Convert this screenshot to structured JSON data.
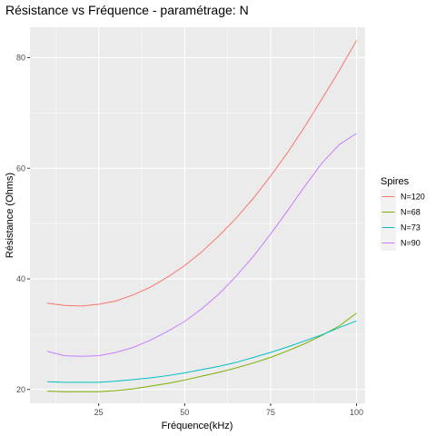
{
  "chart_data": {
    "type": "line",
    "title": "Résistance vs Fréquence - paramétrage: N",
    "xlabel": "Fréquence(kHz)",
    "ylabel": "Résistance (Ohms)",
    "xlim": [
      5,
      102.5
    ],
    "ylim": [
      17.5,
      85.5
    ],
    "x_ticks": [
      25,
      50,
      75,
      100
    ],
    "y_ticks": [
      20,
      40,
      60,
      80
    ],
    "grid": true,
    "legend_title": "Spires",
    "legend_position": "right",
    "x": [
      10,
      15,
      20,
      25,
      30,
      35,
      40,
      45,
      50,
      55,
      60,
      65,
      70,
      75,
      80,
      85,
      90,
      95,
      100
    ],
    "series": [
      {
        "name": "N=120",
        "color": "#F8766D",
        "values": [
          35.6,
          35.2,
          35.1,
          35.4,
          36.0,
          37.1,
          38.5,
          40.3,
          42.4,
          44.9,
          47.8,
          51.0,
          54.6,
          58.6,
          62.9,
          67.6,
          72.6,
          77.7,
          83.1
        ]
      },
      {
        "name": "N=68",
        "color": "#7CAE00",
        "values": [
          19.7,
          19.6,
          19.6,
          19.6,
          19.8,
          20.1,
          20.6,
          21.1,
          21.7,
          22.4,
          23.1,
          23.9,
          24.8,
          25.8,
          27.0,
          28.3,
          29.8,
          31.5,
          33.8
        ]
      },
      {
        "name": "N=73",
        "color": "#00BFC4",
        "values": [
          21.4,
          21.3,
          21.3,
          21.3,
          21.5,
          21.8,
          22.1,
          22.5,
          23.0,
          23.6,
          24.2,
          24.9,
          25.8,
          26.7,
          27.7,
          28.8,
          29.9,
          31.2,
          32.4
        ]
      },
      {
        "name": "N=90",
        "color": "#C77CFF",
        "values": [
          26.9,
          26.1,
          26.0,
          26.1,
          26.7,
          27.6,
          28.9,
          30.5,
          32.3,
          34.6,
          37.3,
          40.5,
          44.1,
          48.1,
          52.4,
          56.8,
          61.0,
          64.3,
          66.3
        ]
      }
    ]
  }
}
